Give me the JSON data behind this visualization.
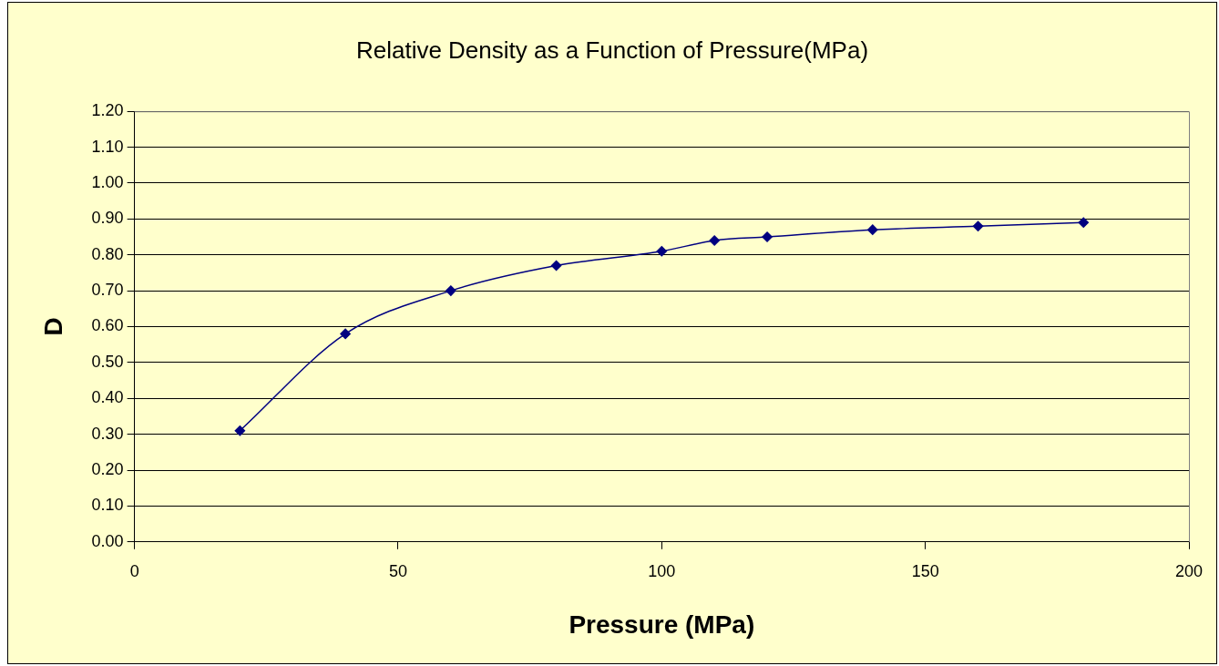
{
  "chart_data": {
    "type": "line",
    "title": "Relative Density as a Function of Pressure(MPa)",
    "xlabel": "Pressure (MPa)",
    "ylabel": "D",
    "x": [
      20,
      40,
      60,
      80,
      100,
      110,
      120,
      140,
      160,
      180
    ],
    "series": [
      {
        "color": "#000080",
        "values": [
          0.31,
          0.58,
          0.7,
          0.77,
          0.81,
          0.84,
          0.85,
          0.87,
          0.88,
          0.89
        ]
      }
    ],
    "xlim": [
      0,
      200
    ],
    "xticks": [
      0,
      50,
      100,
      150,
      200
    ],
    "ylim": [
      0,
      1.2
    ],
    "yticks": [
      {
        "value": 0,
        "label": "0.00"
      },
      {
        "value": 0.1,
        "label": "0.10"
      },
      {
        "value": 0.2,
        "label": "0.20"
      },
      {
        "value": 0.3,
        "label": "0.30"
      },
      {
        "value": 0.4,
        "label": "0.40"
      },
      {
        "value": 0.5,
        "label": "0.50"
      },
      {
        "value": 0.6,
        "label": "0.60"
      },
      {
        "value": 0.7,
        "label": "0.70"
      },
      {
        "value": 0.8,
        "label": "0.80"
      },
      {
        "value": 0.9,
        "label": "0.90"
      },
      {
        "value": 1.0,
        "label": "1.00"
      },
      {
        "value": 1.1,
        "label": "1.10"
      },
      {
        "value": 1.2,
        "label": "1.20"
      }
    ],
    "grid": "y",
    "marker": "diamond",
    "line_style": "solid"
  }
}
